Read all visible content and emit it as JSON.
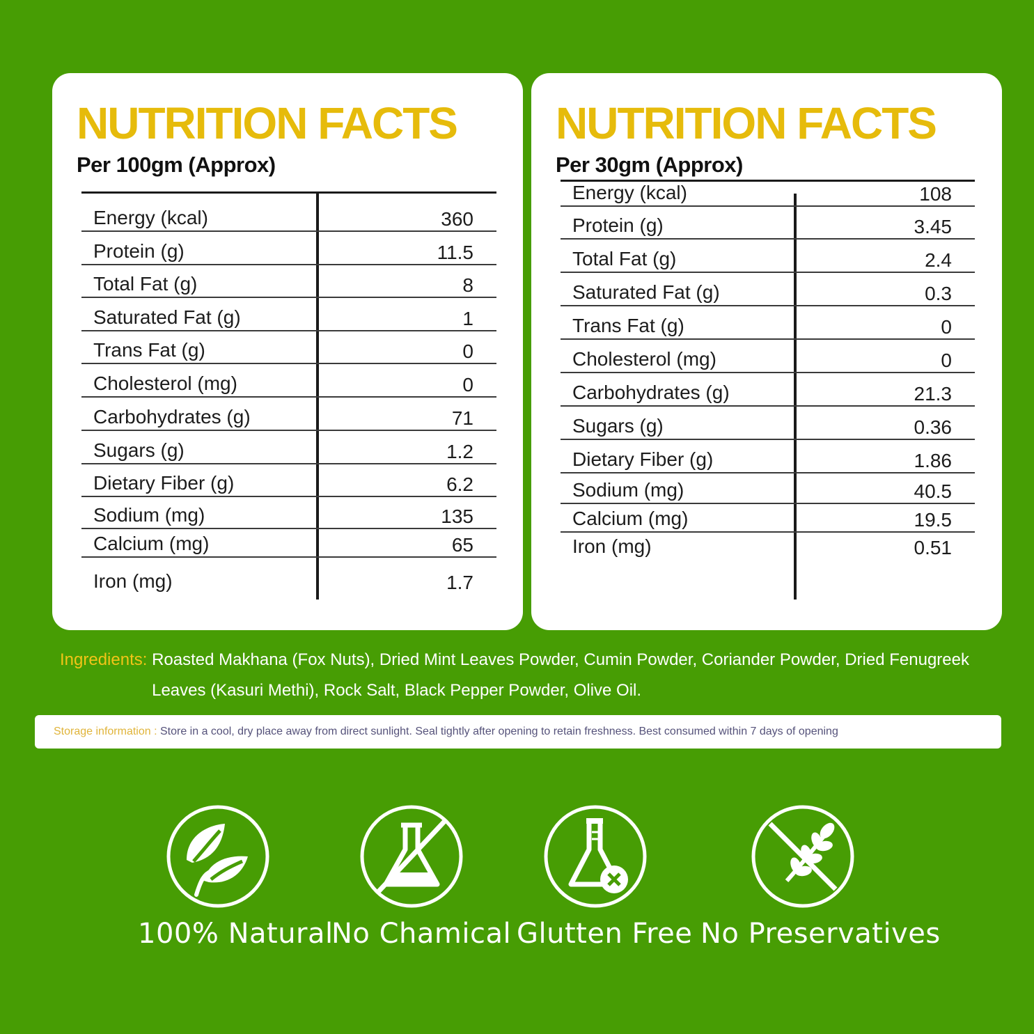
{
  "panels": [
    {
      "title": "NUTRITION FACTS",
      "serving": "Per 100gm (Approx)",
      "rows": [
        {
          "label": "Energy (kcal)",
          "value": "360"
        },
        {
          "label": "Protein (g)",
          "value": "11.5"
        },
        {
          "label": "Total Fat (g)",
          "value": "8"
        },
        {
          "label": "Saturated Fat (g)",
          "value": "1"
        },
        {
          "label": "Trans Fat (g)",
          "value": "0"
        },
        {
          "label": "Cholesterol (mg)",
          "value": "0"
        },
        {
          "label": "Carbohydrates (g)",
          "value": "71"
        },
        {
          "label": "Sugars (g)",
          "value": "1.2"
        },
        {
          "label": "Dietary Fiber (g)",
          "value": "6.2"
        },
        {
          "label": "Sodium (mg)",
          "value": "135"
        },
        {
          "label": "Calcium (mg)",
          "value": "65"
        },
        {
          "label": "Iron (mg)",
          "value": "1.7"
        }
      ]
    },
    {
      "title": "NUTRITION FACTS",
      "serving": "Per 30gm (Approx)",
      "rows": [
        {
          "label": "Energy (kcal)",
          "value": "108"
        },
        {
          "label": "Protein (g)",
          "value": "3.45"
        },
        {
          "label": "Total Fat (g)",
          "value": "2.4"
        },
        {
          "label": "Saturated Fat (g)",
          "value": "0.3"
        },
        {
          "label": "Trans Fat (g)",
          "value": "0"
        },
        {
          "label": "Cholesterol (mg)",
          "value": "0"
        },
        {
          "label": "Carbohydrates (g)",
          "value": "21.3"
        },
        {
          "label": "Sugars (g)",
          "value": "0.36"
        },
        {
          "label": "Dietary Fiber (g)",
          "value": "1.86"
        },
        {
          "label": "Sodium (mg)",
          "value": "40.5"
        },
        {
          "label": "Calcium (mg)",
          "value": "19.5"
        },
        {
          "label": "Iron (mg)",
          "value": "0.51"
        }
      ]
    }
  ],
  "ingredients": {
    "label": "Ingredients:",
    "text": "Roasted Makhana (Fox Nuts), Dried Mint Leaves Powder, Cumin Powder, Coriander Powder, Dried Fenugreek Leaves (Kasuri Methi), Rock Salt, Black Pepper Powder, Olive Oil."
  },
  "storage": {
    "label": "Storage information :",
    "text": "Store in a cool, dry place away from direct sunlight. Seal tightly after opening to retain freshness. Best consumed within 7 days of opening"
  },
  "badges": [
    {
      "label": "100% Natural",
      "icon": "leaves-icon"
    },
    {
      "label": "No Chamical",
      "icon": "no-chemical-flask-icon"
    },
    {
      "label": "Glutten Free",
      "icon": "flask-x-icon"
    },
    {
      "label": "No Preservatives",
      "icon": "no-wheat-icon"
    }
  ],
  "colors": {
    "background": "#479d04",
    "title": "#e6bb0b",
    "ingredients_label": "#f2c418",
    "storage_label": "#e0b43a"
  }
}
